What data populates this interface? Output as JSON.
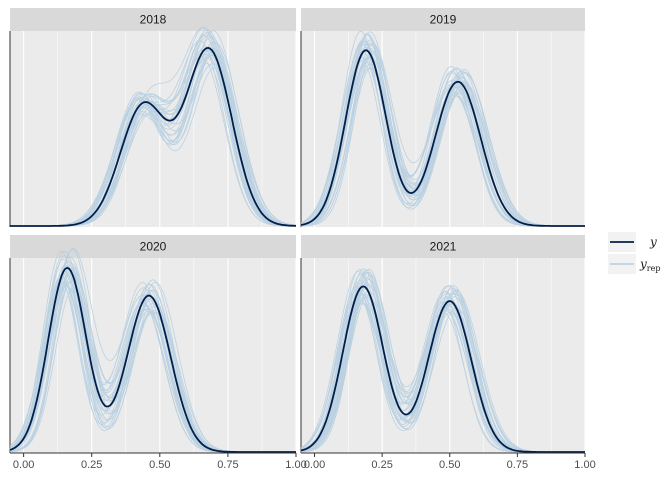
{
  "chart_data": {
    "type": "area",
    "chart_kind": "posterior predictive density overlay",
    "x_ticks": [
      "0.00",
      "0.25",
      "0.50",
      "0.75",
      "1.00"
    ],
    "xlim": [
      -0.05,
      1.0
    ],
    "facets_layout": "2x2",
    "grid": true,
    "legend_position": "right",
    "colors": {
      "y": "#011f4b",
      "yrep": "#b3cde0",
      "panel_bg": "#ebebeb",
      "strip_bg": "#d9d9d9",
      "grid": "#ffffff"
    },
    "legend": {
      "y_label": "y",
      "yrep_base": "y",
      "yrep_sub": "rep"
    },
    "n_yrep_draws": 30,
    "facets": [
      {
        "label": "2018",
        "ymax": 1.0,
        "y_components": [
          {
            "mu": 0.44,
            "sd": 0.085,
            "w": 0.65
          },
          {
            "mu": 0.68,
            "sd": 0.085,
            "w": 0.95
          }
        ]
      },
      {
        "label": "2019",
        "ymax": 1.0,
        "y_components": [
          {
            "mu": 0.19,
            "sd": 0.075,
            "w": 0.95
          },
          {
            "mu": 0.53,
            "sd": 0.085,
            "w": 0.78
          }
        ]
      },
      {
        "label": "2020",
        "ymax": 1.0,
        "y_components": [
          {
            "mu": 0.16,
            "sd": 0.07,
            "w": 1.0
          },
          {
            "mu": 0.46,
            "sd": 0.08,
            "w": 0.85
          }
        ]
      },
      {
        "label": "2021",
        "ymax": 1.0,
        "y_components": [
          {
            "mu": 0.18,
            "sd": 0.075,
            "w": 0.9
          },
          {
            "mu": 0.5,
            "sd": 0.08,
            "w": 0.82
          }
        ]
      }
    ]
  }
}
